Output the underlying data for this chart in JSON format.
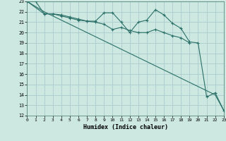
{
  "xlabel": "Humidex (Indice chaleur)",
  "bg_color": "#cce8e0",
  "grid_color": "#aacccc",
  "line_color": "#2a7068",
  "xlim": [
    0,
    23
  ],
  "ylim": [
    12,
    23
  ],
  "yticks": [
    12,
    13,
    14,
    15,
    16,
    17,
    18,
    19,
    20,
    21,
    22,
    23
  ],
  "xticks": [
    0,
    1,
    2,
    3,
    4,
    5,
    6,
    7,
    8,
    9,
    10,
    11,
    12,
    13,
    14,
    15,
    16,
    17,
    18,
    19,
    20,
    21,
    22,
    23
  ],
  "line1_x": [
    0,
    1,
    2,
    3,
    4,
    5,
    6,
    7,
    8,
    9,
    10,
    11,
    12,
    13,
    14,
    15,
    16,
    17,
    18,
    19,
    20,
    21,
    22,
    23
  ],
  "line1_y": [
    23.0,
    23.0,
    21.8,
    21.8,
    21.7,
    21.5,
    21.3,
    21.1,
    21.1,
    21.9,
    21.9,
    21.0,
    20.0,
    21.0,
    21.2,
    22.2,
    21.7,
    20.9,
    20.4,
    19.1,
    19.0,
    13.8,
    14.2,
    12.5
  ],
  "line2_x": [
    0,
    2,
    3,
    4,
    5,
    6,
    7,
    8,
    9,
    10,
    11,
    12,
    13,
    14,
    15,
    16,
    17,
    18,
    19
  ],
  "line2_y": [
    23.0,
    21.8,
    21.8,
    21.6,
    21.4,
    21.2,
    21.1,
    21.0,
    20.8,
    20.3,
    20.5,
    20.2,
    20.0,
    20.0,
    20.3,
    20.0,
    19.7,
    19.5,
    19.0
  ],
  "line3_x": [
    0,
    1,
    2,
    3,
    4,
    5,
    6,
    7,
    8,
    9,
    10,
    11,
    12,
    13,
    14,
    15,
    16,
    17,
    18,
    19,
    20,
    21,
    22,
    23
  ],
  "line3_y": [
    23.0,
    22.5,
    22.0,
    21.6,
    21.2,
    20.8,
    20.4,
    20.0,
    19.6,
    19.2,
    18.8,
    18.4,
    18.0,
    17.6,
    17.2,
    16.8,
    16.4,
    16.0,
    15.6,
    15.2,
    14.8,
    14.4,
    14.0,
    12.5
  ]
}
